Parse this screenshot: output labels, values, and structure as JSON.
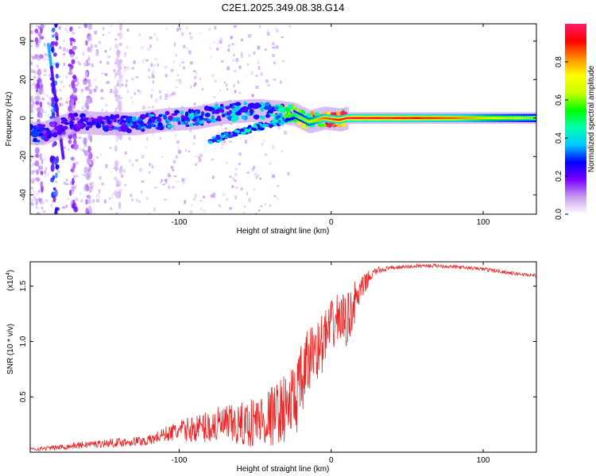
{
  "title": "C2E1.2025.349.08.38.G14",
  "chart_data": [
    {
      "type": "heatmap",
      "name": "spectrogram",
      "xlabel": "Height of straight line (km)",
      "ylabel": "Frequency (Hz)",
      "xlim": [
        -198,
        135
      ],
      "ylim": [
        -50,
        49
      ],
      "xticks": [
        -100,
        0,
        100
      ],
      "xtick_labels": [
        "-100",
        "0",
        "100"
      ],
      "yticks": [
        -40,
        -20,
        0,
        20,
        40
      ],
      "ytick_labels": [
        "-40",
        "-20",
        "0",
        "20",
        "40"
      ],
      "colorbar": {
        "label": "Normalized spectral amplitude",
        "range": [
          0,
          1
        ],
        "ticks": [
          0.0,
          0.2,
          0.4,
          0.6,
          0.8
        ],
        "tick_labels": [
          "0.0",
          "0.2",
          "0.4",
          "0.6",
          "0.8"
        ],
        "colors": [
          "#ffffff",
          "#c79cf0",
          "#7a00ff",
          "#0000ff",
          "#00c8ff",
          "#00ffb0",
          "#00ff00",
          "#c8ff00",
          "#ffff00",
          "#ff8c00",
          "#ff0000",
          "#ff1a6a"
        ]
      },
      "main_trace": [
        {
          "x": -196,
          "y": -8,
          "v": 0.3
        },
        {
          "x": -190,
          "y": -8,
          "v": 0.25
        },
        {
          "x": -170,
          "y": -2,
          "v": 0.22
        },
        {
          "x": -150,
          "y": -3,
          "v": 0.25
        },
        {
          "x": -130,
          "y": -3,
          "v": 0.3
        },
        {
          "x": -110,
          "y": -1,
          "v": 0.32
        },
        {
          "x": -90,
          "y": 0,
          "v": 0.35
        },
        {
          "x": -70,
          "y": 3,
          "v": 0.35
        },
        {
          "x": -50,
          "y": 4,
          "v": 0.35
        },
        {
          "x": -35,
          "y": 3,
          "v": 0.38
        },
        {
          "x": -25,
          "y": 2,
          "v": 0.55
        },
        {
          "x": -15,
          "y": -2,
          "v": 0.7
        },
        {
          "x": -5,
          "y": 0,
          "v": 0.85
        },
        {
          "x": 5,
          "y": -1,
          "v": 0.9
        },
        {
          "x": 10,
          "y": 0,
          "v": 0.95
        },
        {
          "x": 40,
          "y": 0,
          "v": 0.95
        },
        {
          "x": 80,
          "y": 0,
          "v": 0.85
        },
        {
          "x": 110,
          "y": 0,
          "v": 0.7
        },
        {
          "x": 135,
          "y": 0,
          "v": 0.6
        }
      ],
      "secondary_trace": [
        {
          "x": -80,
          "y": -12,
          "v": 0.3
        },
        {
          "x": -65,
          "y": -8,
          "v": 0.3
        },
        {
          "x": -50,
          "y": -5,
          "v": 0.35
        },
        {
          "x": -35,
          "y": -2,
          "v": 0.35
        },
        {
          "x": -25,
          "y": 0,
          "v": 0.4
        }
      ]
    },
    {
      "type": "line",
      "name": "snr",
      "xlabel": "Height of straight line (km)",
      "ylabel": "SNR (10 * v/v)",
      "y_multiplier_label": "(x10",
      "y_multiplier_exp": "4",
      "y_multiplier_close": ")",
      "xlim": [
        -198,
        135
      ],
      "ylim": [
        0,
        1.72
      ],
      "xticks": [
        -100,
        0,
        100
      ],
      "xtick_labels": [
        "-100",
        "0",
        "100"
      ],
      "yticks": [
        0.5,
        1.0,
        1.5
      ],
      "ytick_labels": [
        "0.5",
        "1.0",
        "1.5"
      ],
      "color": "#ee2222",
      "series": [
        {
          "name": "SNR",
          "x": [
            -198,
            -180,
            -160,
            -140,
            -120,
            -110,
            -100,
            -90,
            -80,
            -70,
            -60,
            -50,
            -40,
            -35,
            -30,
            -25,
            -22,
            -20,
            -18,
            -15,
            -12,
            -10,
            -8,
            -5,
            0,
            5,
            10,
            15,
            20,
            25,
            30,
            40,
            50,
            60,
            70,
            80,
            90,
            100,
            110,
            120,
            135
          ],
          "y": [
            0.03,
            0.05,
            0.08,
            0.1,
            0.12,
            0.18,
            0.22,
            0.25,
            0.28,
            0.3,
            0.3,
            0.35,
            0.4,
            0.45,
            0.5,
            0.55,
            0.65,
            0.7,
            0.8,
            0.9,
            1.0,
            1.05,
            1.0,
            1.1,
            1.2,
            1.3,
            1.25,
            1.4,
            1.5,
            1.6,
            1.65,
            1.67,
            1.68,
            1.69,
            1.69,
            1.68,
            1.67,
            1.66,
            1.64,
            1.62,
            1.6
          ],
          "noise": [
            0.02,
            0.03,
            0.04,
            0.05,
            0.06,
            0.08,
            0.12,
            0.15,
            0.2,
            0.22,
            0.25,
            0.3,
            0.35,
            0.35,
            0.4,
            0.45,
            0.45,
            0.45,
            0.45,
            0.4,
            0.35,
            0.35,
            0.35,
            0.35,
            0.3,
            0.3,
            0.3,
            0.25,
            0.15,
            0.08,
            0.04,
            0.02,
            0.02,
            0.02,
            0.02,
            0.02,
            0.02,
            0.02,
            0.02,
            0.02,
            0.02
          ]
        }
      ]
    }
  ]
}
